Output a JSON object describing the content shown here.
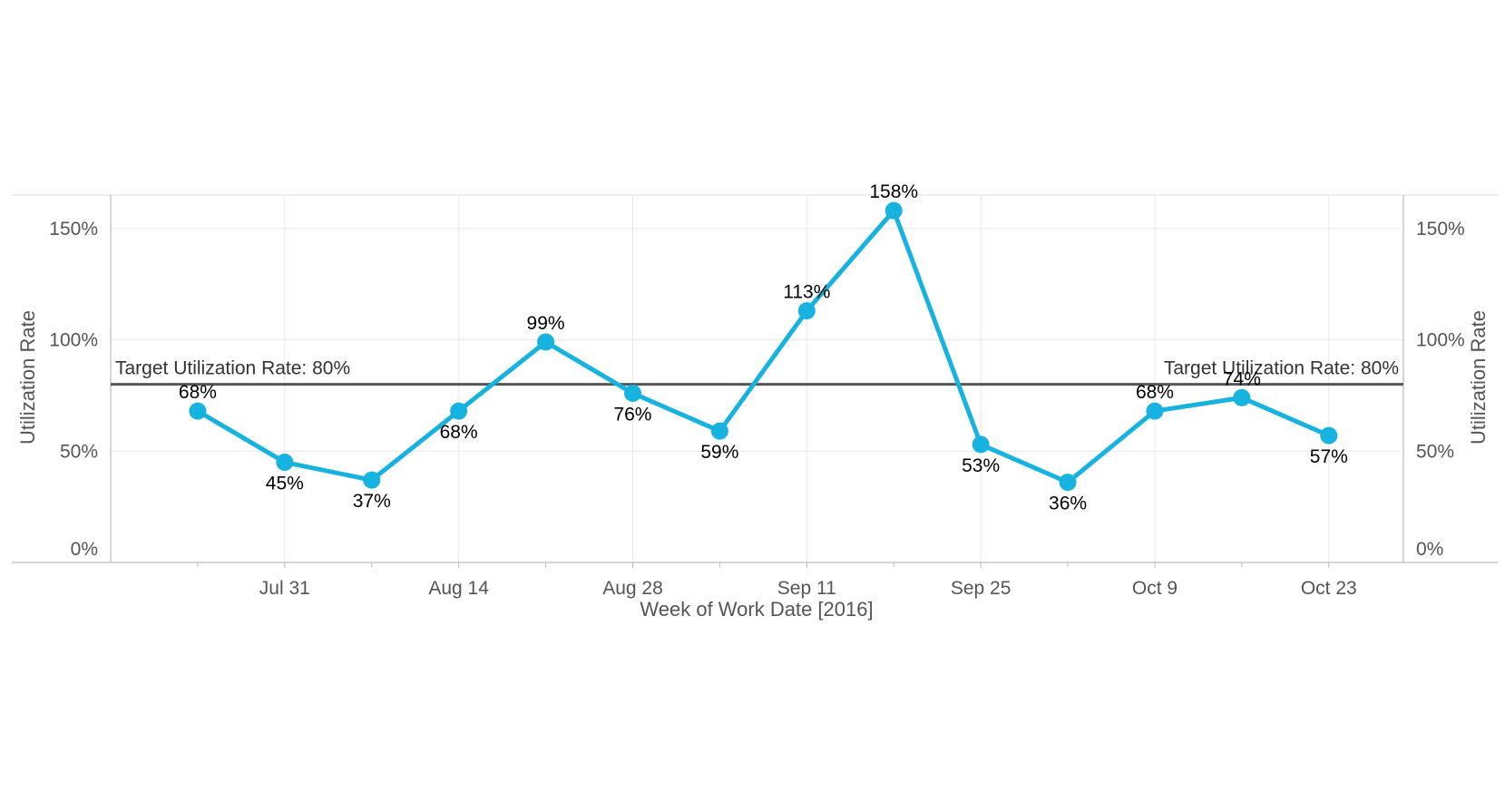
{
  "chart_data": {
    "type": "line",
    "xlabel": "Week of Work Date [2016]",
    "ylabel": "Utilization Rate",
    "y2label": "Utilization Rate",
    "ylim": [
      0,
      165
    ],
    "y_ticks": [
      0,
      50,
      100,
      150
    ],
    "y_tick_labels": [
      "0%",
      "50%",
      "100%",
      "150%"
    ],
    "x_tick_labels": [
      "Jul 31",
      "Aug 14",
      "Aug 28",
      "Sep 11",
      "Sep 25",
      "Oct 9",
      "Oct 23"
    ],
    "x_tick_dates": [
      "2016-07-31",
      "2016-08-14",
      "2016-08-28",
      "2016-09-11",
      "2016-09-25",
      "2016-10-09",
      "2016-10-23"
    ],
    "x_minor_dates": [
      "2016-07-24",
      "2016-08-07",
      "2016-08-21",
      "2016-09-04",
      "2016-09-18",
      "2016-10-02",
      "2016-10-16"
    ],
    "x_range": [
      "2016-07-17",
      "2016-10-29"
    ],
    "grid": true,
    "color": "#17b3e0",
    "reference_line": {
      "value": 80,
      "label_left": "Target Utilization Rate: 80%",
      "label_right": "Target Utilization Rate: 80%",
      "color": "#555555"
    },
    "series": [
      {
        "x": [
          "2016-07-24",
          "2016-07-31",
          "2016-08-07",
          "2016-08-14",
          "2016-08-21",
          "2016-08-28",
          "2016-09-04",
          "2016-09-11",
          "2016-09-18",
          "2016-09-25",
          "2016-10-02",
          "2016-10-09",
          "2016-10-16",
          "2016-10-23"
        ],
        "values": [
          68,
          45,
          37,
          68,
          99,
          76,
          59,
          113,
          158,
          53,
          36,
          68,
          74,
          57
        ],
        "labels": [
          "68%",
          "45%",
          "37%",
          "68%",
          "99%",
          "76%",
          "59%",
          "113%",
          "158%",
          "53%",
          "36%",
          "68%",
          "74%",
          "57%"
        ],
        "label_pos": [
          "above",
          "below",
          "below",
          "below",
          "above",
          "below",
          "below",
          "above",
          "above",
          "below",
          "below",
          "above",
          "above",
          "below"
        ]
      }
    ]
  }
}
